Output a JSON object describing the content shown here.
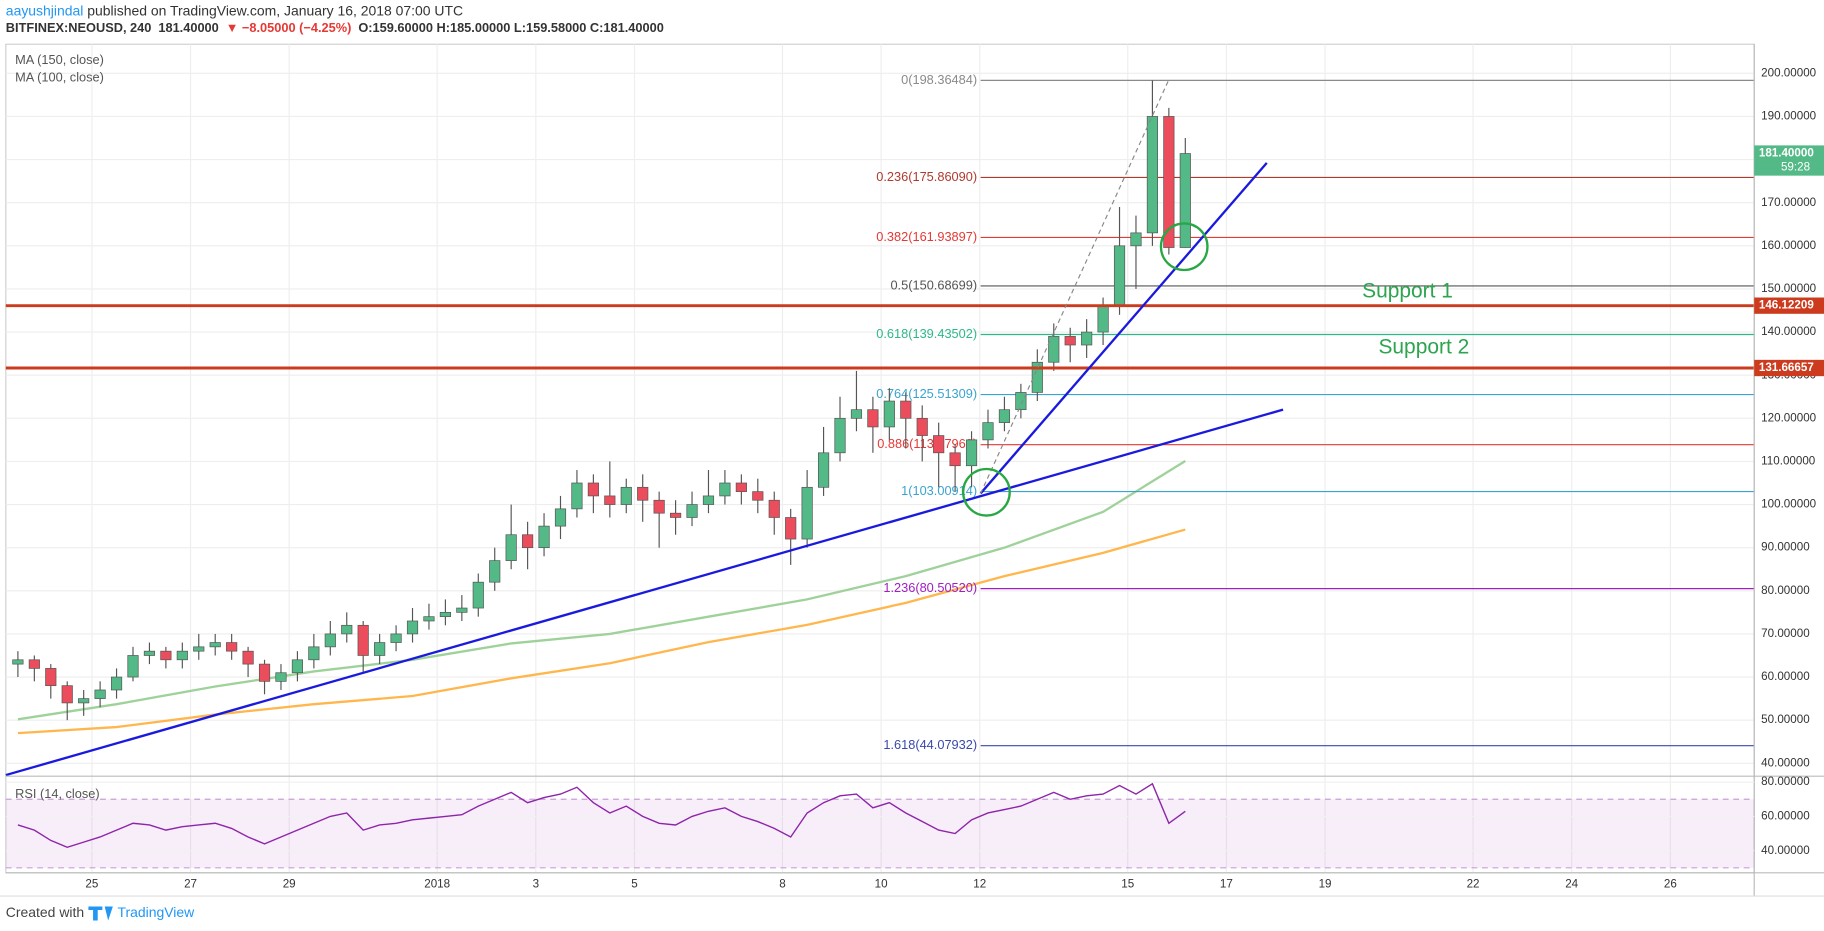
{
  "header": {
    "author": "aayushjindal",
    "published": " published on TradingView.com, January 16, 2018 07:00 UTC",
    "symbol": "BITFINEX:NEOUSD, 240",
    "price": "181.40000",
    "change": "▼ −8.05000 (−4.25%)",
    "ohlc": "O:159.60000 H:185.00000 L:159.58000 C:181.40000"
  },
  "chart_data": [
    {
      "type": "candlestick",
      "legend": [
        "MA (150, close)",
        "MA (100, close)"
      ],
      "up_color": "#53b987",
      "down_color": "#eb4d5c",
      "categories": [
        null,
        null,
        null,
        null,
        null,
        null,
        null,
        null,
        null,
        null,
        null,
        null,
        null,
        null,
        null,
        null,
        null,
        null,
        null,
        null,
        null,
        null,
        null,
        null,
        null,
        null,
        null,
        null,
        null,
        null,
        null,
        null,
        null,
        null,
        null,
        null,
        null,
        null,
        null,
        null,
        null,
        null,
        null,
        null,
        null,
        null,
        null,
        null,
        null,
        null,
        null,
        null,
        null,
        null,
        null,
        null,
        null,
        null,
        null,
        null,
        null,
        null,
        null,
        null,
        null,
        null,
        null,
        null,
        null,
        null,
        null,
        null
      ],
      "open": [
        63,
        64,
        62,
        58,
        54,
        55,
        57,
        60,
        65,
        66,
        64,
        66,
        67,
        68,
        66,
        63,
        59,
        61,
        64,
        67,
        70,
        72,
        65,
        68,
        70,
        73,
        74,
        75,
        76,
        82,
        87,
        93,
        90,
        95,
        99,
        105,
        102,
        100,
        104,
        101,
        98,
        97,
        100,
        102,
        105,
        103,
        101,
        97,
        92,
        104,
        112,
        120,
        122,
        118,
        124,
        120,
        116,
        112,
        109,
        115,
        119,
        122,
        126,
        133,
        139,
        137,
        140,
        146,
        160,
        163,
        190,
        159.6
      ],
      "high": [
        66,
        65,
        63,
        59,
        57,
        59,
        62,
        67,
        68,
        67,
        68,
        70,
        70,
        70,
        67,
        64,
        63,
        66,
        70,
        73,
        75,
        73,
        70,
        72,
        76,
        77,
        78,
        79,
        84,
        90,
        100,
        96,
        98,
        102,
        108,
        107,
        110,
        106,
        107,
        103,
        101,
        103,
        108,
        108,
        107,
        106,
        103,
        99,
        108,
        118,
        125,
        131,
        125,
        127,
        126,
        123,
        119,
        114,
        117,
        122,
        125,
        128,
        136,
        142,
        141,
        143,
        148,
        169,
        167,
        198.36,
        192,
        185
      ],
      "low": [
        60,
        59,
        55,
        50,
        51,
        53,
        55,
        59,
        63,
        62,
        62,
        64,
        65,
        64,
        60,
        56,
        57,
        59,
        62,
        65,
        68,
        61,
        63,
        66,
        68,
        71,
        72,
        73,
        74,
        80,
        85,
        85,
        88,
        92,
        97,
        98,
        97,
        98,
        96,
        90,
        93,
        95,
        98,
        100,
        100,
        98,
        93,
        86,
        90,
        102,
        110,
        117,
        112,
        115,
        113,
        110,
        104,
        103,
        104,
        113,
        117,
        120,
        124,
        131,
        133,
        134,
        137,
        144,
        150,
        160,
        158,
        159.58
      ],
      "close": [
        64,
        62,
        58,
        54,
        55,
        57,
        60,
        65,
        66,
        64,
        66,
        67,
        68,
        66,
        63,
        59,
        61,
        64,
        67,
        70,
        72,
        65,
        68,
        70,
        73,
        74,
        75,
        76,
        82,
        87,
        93,
        90,
        95,
        99,
        105,
        102,
        100,
        104,
        101,
        98,
        97,
        100,
        102,
        105,
        103,
        101,
        97,
        92,
        104,
        112,
        120,
        122,
        118,
        124,
        120,
        116,
        112,
        109,
        115,
        119,
        122,
        126,
        133,
        139,
        137,
        140,
        146,
        160,
        163,
        190,
        159.6,
        181.4
      ],
      "series": [
        {
          "name": "MA (150, close)",
          "color": "#ffb74d",
          "x": [
            0,
            6,
            12,
            18,
            24,
            30,
            36,
            42,
            48,
            54,
            60,
            66,
            71
          ],
          "values": [
            47,
            48.4,
            51.3,
            53.7,
            55.6,
            59.7,
            63.2,
            68.1,
            72.1,
            77.2,
            83.4,
            88.8,
            94.2
          ]
        },
        {
          "name": "MA (100, close)",
          "color": "#9fd29a",
          "x": [
            0,
            6,
            12,
            18,
            24,
            30,
            36,
            42,
            48,
            54,
            60,
            66,
            71
          ],
          "values": [
            50.2,
            53.7,
            57.8,
            61.3,
            64,
            67.8,
            70,
            74,
            78,
            83.4,
            90,
            98.3,
            110.1
          ]
        }
      ],
      "xlim": [
        -0.735,
        105.6
      ],
      "xticks": [
        {
          "value": 4.5,
          "label": "25"
        },
        {
          "value": 10.5,
          "label": "27"
        },
        {
          "value": 16.5,
          "label": "29"
        },
        {
          "value": 25.5,
          "label": "2018"
        },
        {
          "value": 31.5,
          "label": "3"
        },
        {
          "value": 37.5,
          "label": "5"
        },
        {
          "value": 46.5,
          "label": "8"
        },
        {
          "value": 52.5,
          "label": "10"
        },
        {
          "value": 58.5,
          "label": "12"
        },
        {
          "value": 67.5,
          "label": "15"
        },
        {
          "value": 73.5,
          "label": "17"
        },
        {
          "value": 79.5,
          "label": "19"
        },
        {
          "value": 88.5,
          "label": "22"
        },
        {
          "value": 94.5,
          "label": "24"
        },
        {
          "value": 100.5,
          "label": "26"
        }
      ],
      "ylim": [
        37,
        206.75
      ],
      "yticks": [
        {
          "value": 40,
          "label": "40.00000"
        },
        {
          "value": 50,
          "label": "50.00000"
        },
        {
          "value": 60,
          "label": "60.00000"
        },
        {
          "value": 70,
          "label": "70.00000"
        },
        {
          "value": 80,
          "label": "80.00000"
        },
        {
          "value": 90,
          "label": "90.00000"
        },
        {
          "value": 100,
          "label": "100.00000"
        },
        {
          "value": 110,
          "label": "110.00000"
        },
        {
          "value": 120,
          "label": "120.00000"
        },
        {
          "value": 130,
          "label": "130.00000"
        },
        {
          "value": 140,
          "label": "140.00000"
        },
        {
          "value": 150,
          "label": "150.00000"
        },
        {
          "value": 160,
          "label": "160.00000"
        },
        {
          "value": 170,
          "label": "170.00000"
        },
        {
          "value": 180,
          "label": "180.00000"
        },
        {
          "value": 190,
          "label": "190.00000"
        },
        {
          "value": 200,
          "label": "200.00000"
        }
      ],
      "grid": true,
      "fib_levels": [
        {
          "value": 198.36484,
          "label": "0(198.36484)",
          "color": "#8a8a8a"
        },
        {
          "value": 175.8609,
          "label": "0.236(175.86090)",
          "color": "#b03a2e"
        },
        {
          "value": 161.93897,
          "label": "0.382(161.93897)",
          "color": "#e53935"
        },
        {
          "value": 150.68699,
          "label": "0.5(150.68699)",
          "color": "#555555"
        },
        {
          "value": 139.43502,
          "label": "0.618(139.43502)",
          "color": "#2eb88a"
        },
        {
          "value": 125.51309,
          "label": "0.764(125.51309)",
          "color": "#3ba3d0"
        },
        {
          "value": 113.87969,
          "label": "0.886(113.87969)",
          "color": "#e53935"
        },
        {
          "value": 103.00914,
          "label": "1(103.00914)",
          "color": "#3ba3d0"
        },
        {
          "value": 80.5052,
          "label": "1.236(80.50520)",
          "color": "#a020c0"
        },
        {
          "value": 44.07932,
          "label": "1.618(44.07932)",
          "color": "#3949ab"
        }
      ],
      "horizontal_lines": [
        {
          "value": 146.12209,
          "label": "146.12209",
          "color": "#cc3b1d"
        },
        {
          "value": 131.66657,
          "label": "131.66657",
          "color": "#cc3b1d"
        }
      ],
      "annotations": [
        "Support 1",
        "Support 2"
      ],
      "last_price": {
        "value": 181.4,
        "label": "181.40000",
        "countdown": "59:28",
        "color": "#53b987"
      }
    },
    {
      "type": "line",
      "name": "RSI (14, close)",
      "color": "#8e24aa",
      "values": [
        55,
        52,
        46,
        42,
        45,
        48,
        52,
        56,
        55,
        52,
        54,
        55,
        56,
        53,
        48,
        44,
        48,
        52,
        56,
        60,
        62,
        52,
        55,
        56,
        58,
        59,
        60,
        61,
        66,
        70,
        74,
        68,
        71,
        73,
        77,
        68,
        62,
        66,
        60,
        56,
        55,
        60,
        63,
        65,
        60,
        57,
        53,
        48,
        62,
        68,
        72,
        73,
        65,
        68,
        62,
        57,
        52,
        50,
        58,
        62,
        64,
        66,
        70,
        74,
        70,
        72,
        73,
        78,
        73,
        79,
        56,
        63
      ],
      "ylim": [
        27.1,
        81.4
      ],
      "yticks": [
        {
          "value": 40,
          "label": "40.00000"
        },
        {
          "value": 60,
          "label": "60.00000"
        },
        {
          "value": 80,
          "label": "80.00000"
        }
      ],
      "bands": [
        30,
        70
      ]
    }
  ],
  "footer": {
    "created": "Created with",
    "brand": "TradingView"
  }
}
